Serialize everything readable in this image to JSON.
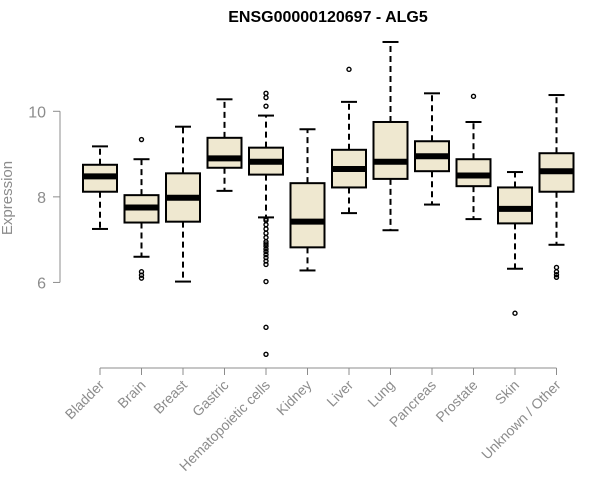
{
  "chart_data": {
    "type": "boxplot",
    "title": "ENSG00000120697 - ALG5",
    "xlabel": "",
    "ylabel": "Expression",
    "ylim": [
      4.0,
      11.9
    ],
    "yticks": [
      6,
      8,
      10
    ],
    "box_fill": "#efe8d0",
    "categories": [
      "Bladder",
      "Brain",
      "Breast",
      "Gastric",
      "Hematopoietic cells",
      "Kidney",
      "Liver",
      "Lung",
      "Pancreas",
      "Prostate",
      "Skin",
      "Unknown / Other"
    ],
    "boxes": [
      {
        "name": "Bladder",
        "whisker_low": 7.25,
        "q1": 8.12,
        "median": 8.48,
        "q3": 8.75,
        "whisker_high": 9.18,
        "outliers": []
      },
      {
        "name": "Brain",
        "whisker_low": 6.6,
        "q1": 7.4,
        "median": 7.75,
        "q3": 8.04,
        "whisker_high": 8.88,
        "outliers": [
          9.34,
          6.25,
          6.17,
          6.1
        ]
      },
      {
        "name": "Breast",
        "whisker_low": 6.02,
        "q1": 7.42,
        "median": 7.98,
        "q3": 8.55,
        "whisker_high": 9.64,
        "outliers": []
      },
      {
        "name": "Gastric",
        "whisker_low": 8.14,
        "q1": 8.68,
        "median": 8.9,
        "q3": 9.38,
        "whisker_high": 10.28,
        "outliers": []
      },
      {
        "name": "Hematopoietic cells",
        "whisker_low": 7.52,
        "q1": 8.52,
        "median": 8.82,
        "q3": 9.15,
        "whisker_high": 9.9,
        "outliers": [
          10.42,
          10.32,
          10.12,
          7.48,
          7.45,
          7.35,
          7.25,
          7.15,
          7.05,
          6.95,
          6.9,
          6.85,
          6.78,
          6.72,
          6.65,
          6.58,
          6.5,
          6.42,
          6.02,
          4.95,
          4.32
        ]
      },
      {
        "name": "Kidney",
        "whisker_low": 6.28,
        "q1": 6.82,
        "median": 7.42,
        "q3": 8.32,
        "whisker_high": 9.58,
        "outliers": []
      },
      {
        "name": "Liver",
        "whisker_low": 7.62,
        "q1": 8.22,
        "median": 8.65,
        "q3": 9.1,
        "whisker_high": 10.22,
        "outliers": [
          10.98
        ]
      },
      {
        "name": "Lung",
        "whisker_low": 7.22,
        "q1": 8.42,
        "median": 8.82,
        "q3": 9.75,
        "whisker_high": 11.62,
        "outliers": []
      },
      {
        "name": "Pancreas",
        "whisker_low": 7.82,
        "q1": 8.6,
        "median": 8.95,
        "q3": 9.3,
        "whisker_high": 10.42,
        "outliers": []
      },
      {
        "name": "Prostate",
        "whisker_low": 7.48,
        "q1": 8.25,
        "median": 8.5,
        "q3": 8.88,
        "whisker_high": 9.75,
        "outliers": [
          10.35
        ]
      },
      {
        "name": "Skin",
        "whisker_low": 6.32,
        "q1": 7.38,
        "median": 7.72,
        "q3": 8.22,
        "whisker_high": 8.58,
        "outliers": [
          5.28
        ]
      },
      {
        "name": "Unknown / Other",
        "whisker_low": 6.88,
        "q1": 8.12,
        "median": 8.6,
        "q3": 9.02,
        "whisker_high": 10.38,
        "outliers": [
          6.35,
          6.25,
          6.18,
          6.12
        ]
      }
    ]
  }
}
